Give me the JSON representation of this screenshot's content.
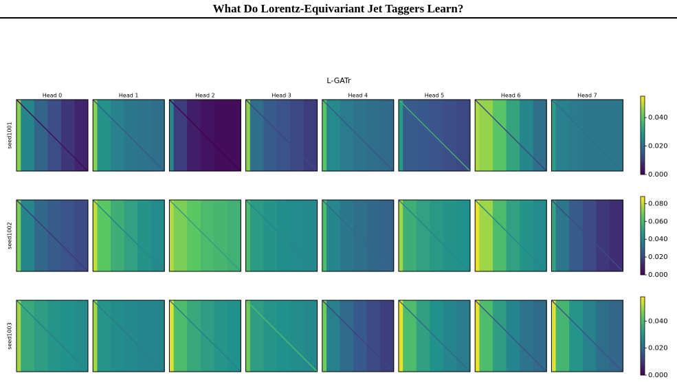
{
  "header": {
    "title": "What Do Lorentz-Equivariant Jet Taggers Learn?"
  },
  "figure": {
    "title": "L-GATr",
    "heads": [
      "Head 0",
      "Head 1",
      "Head 2",
      "Head 3",
      "Head 4",
      "Head 5",
      "Head 6",
      "Head 7"
    ]
  },
  "chart_data": [
    {
      "type": "heatmap",
      "ylabel": "seed1001",
      "zlim": [
        0,
        0.055
      ],
      "zticks": [
        {
          "value": 0,
          "label": "0.000"
        },
        {
          "value": 0.02,
          "label": "0.020"
        },
        {
          "value": 0.04,
          "label": "0.040"
        }
      ],
      "panels": [
        {
          "columns": [
            0.045,
            0.025,
            0.018,
            0.013,
            0.009,
            0.006
          ],
          "diagonal": 0.002
        },
        {
          "columns": [
            0.045,
            0.028,
            0.024,
            0.022,
            0.021,
            0.02
          ],
          "diagonal": 0.016
        },
        {
          "columns": [
            0.025,
            0.01,
            0.005,
            0.003,
            0.002,
            0.002
          ],
          "diagonal": 0
        },
        {
          "columns": [
            0.045,
            0.02,
            0.016,
            0.014,
            0.012,
            0.01
          ],
          "diagonal": 0.012
        },
        {
          "columns": [
            0.04,
            0.026,
            0.023,
            0.021,
            0.02,
            0.019
          ],
          "diagonal": 0.015
        },
        {
          "columns": [
            0.03,
            0.016,
            0.015,
            0.014,
            0.013,
            0.012
          ],
          "diagonal": 0.035
        },
        {
          "columns": [
            0.048,
            0.046,
            0.04,
            0.032,
            0.025,
            0.02
          ],
          "diagonal": 0.012
        },
        {
          "columns": [
            0.03,
            0.024,
            0.023,
            0.022,
            0.022,
            0.022
          ],
          "diagonal": 0.02
        }
      ]
    },
    {
      "type": "heatmap",
      "ylabel": "seed1002",
      "zlim": [
        0,
        0.088
      ],
      "zticks": [
        {
          "value": 0,
          "label": "0.000"
        },
        {
          "value": 0.02,
          "label": "0.020"
        },
        {
          "value": 0.04,
          "label": "0.040"
        },
        {
          "value": 0.06,
          "label": "0.060"
        },
        {
          "value": 0.08,
          "label": "0.080"
        }
      ],
      "panels": [
        {
          "columns": [
            0.07,
            0.04,
            0.03,
            0.025,
            0.022,
            0.02
          ],
          "diagonal": 0.015
        },
        {
          "columns": [
            0.08,
            0.065,
            0.055,
            0.05,
            0.045,
            0.042
          ],
          "diagonal": 0.04
        },
        {
          "columns": [
            0.078,
            0.07,
            0.065,
            0.06,
            0.058,
            0.056
          ],
          "diagonal": 0.05
        },
        {
          "columns": [
            0.06,
            0.048,
            0.045,
            0.043,
            0.042,
            0.041
          ],
          "diagonal": 0.04
        },
        {
          "columns": [
            0.06,
            0.04,
            0.035,
            0.032,
            0.03,
            0.028
          ],
          "diagonal": 0.03
        },
        {
          "columns": [
            0.075,
            0.055,
            0.05,
            0.047,
            0.045,
            0.044
          ],
          "diagonal": 0.04
        },
        {
          "columns": [
            0.085,
            0.075,
            0.06,
            0.05,
            0.045,
            0.042
          ],
          "diagonal": 0.04
        },
        {
          "columns": [
            0.05,
            0.035,
            0.025,
            0.02,
            0.015,
            0.012
          ],
          "diagonal": 0.02
        }
      ]
    },
    {
      "type": "heatmap",
      "ylabel": "seed1003",
      "zlim": [
        0,
        0.058
      ],
      "zticks": [
        {
          "value": 0,
          "label": "0.000"
        },
        {
          "value": 0.02,
          "label": "0.020"
        },
        {
          "value": 0.04,
          "label": "0.040"
        }
      ],
      "panels": [
        {
          "columns": [
            0.05,
            0.035,
            0.032,
            0.03,
            0.029,
            0.028
          ],
          "diagonal": 0.025
        },
        {
          "columns": [
            0.05,
            0.03,
            0.028,
            0.027,
            0.026,
            0.026
          ],
          "diagonal": 0.024
        },
        {
          "columns": [
            0.055,
            0.04,
            0.035,
            0.032,
            0.03,
            0.029
          ],
          "diagonal": 0.025
        },
        {
          "columns": [
            0.045,
            0.032,
            0.03,
            0.029,
            0.028,
            0.027
          ],
          "diagonal": 0.04
        },
        {
          "columns": [
            0.045,
            0.025,
            0.02,
            0.016,
            0.013,
            0.011
          ],
          "diagonal": 0.012
        },
        {
          "columns": [
            0.056,
            0.04,
            0.033,
            0.029,
            0.026,
            0.024
          ],
          "diagonal": 0.02
        },
        {
          "columns": [
            0.056,
            0.04,
            0.032,
            0.026,
            0.022,
            0.02
          ],
          "diagonal": 0.015
        },
        {
          "columns": [
            0.055,
            0.038,
            0.03,
            0.025,
            0.021,
            0.019
          ],
          "diagonal": 0.015
        }
      ]
    }
  ]
}
